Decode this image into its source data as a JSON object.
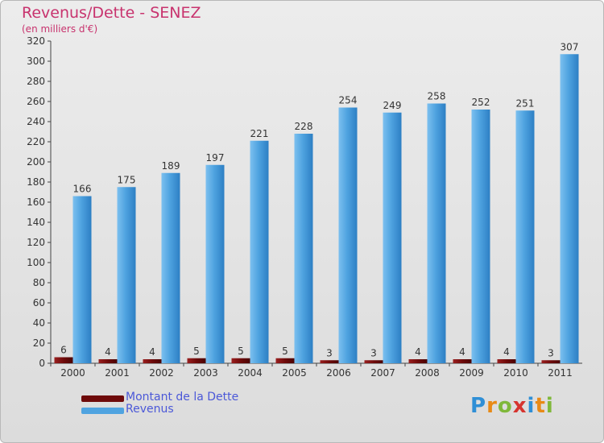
{
  "title": "Revenus/Dette - SENEZ",
  "subtitle": "(en milliers d'€)",
  "colors": {
    "title": "#c8336e",
    "legend_text": "#4b58d8",
    "debt": "#6e0a0a",
    "revenue": "#4fa3e0",
    "revenue_dark": "#2d7fc4",
    "axis": "#444444"
  },
  "legend": {
    "debt_label": "Montant de la Dette",
    "revenue_label": "Revenus"
  },
  "logo": {
    "text": "Proxiti"
  },
  "chart_data": {
    "type": "bar",
    "title": "Revenus/Dette - SENEZ",
    "ylabel": "(en milliers d'€)",
    "xlabel": "",
    "ylim": [
      0,
      320
    ],
    "ytick_step": 20,
    "categories": [
      "2000",
      "2001",
      "2002",
      "2003",
      "2004",
      "2005",
      "2006",
      "2007",
      "2008",
      "2009",
      "2010",
      "2011"
    ],
    "series": [
      {
        "name": "Montant de la Dette",
        "values": [
          6,
          4,
          4,
          5,
          5,
          5,
          3,
          3,
          4,
          4,
          4,
          3
        ]
      },
      {
        "name": "Revenus",
        "values": [
          166,
          175,
          189,
          197,
          221,
          228,
          254,
          249,
          258,
          252,
          251,
          307
        ]
      }
    ],
    "grid": false,
    "legend_position": "bottom-left"
  }
}
